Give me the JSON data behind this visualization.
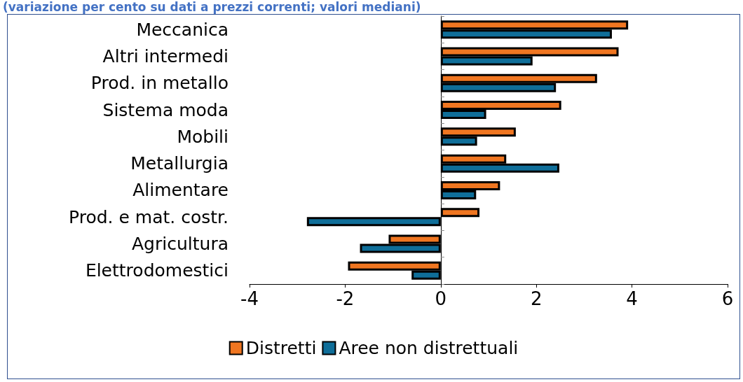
{
  "chart_data": {
    "type": "bar",
    "orientation": "horizontal",
    "title": "(variazione per cento su dati a prezzi correnti; valori mediani)",
    "categories": [
      "Meccanica",
      "Altri intermedi",
      "Prod. in metallo",
      "Sistema moda",
      "Mobili",
      "Metallurgia",
      "Alimentare",
      "Prod. e mat. costr.",
      "Agricultura",
      "Elettrodomestici"
    ],
    "series": [
      {
        "name": "Distretti",
        "color": "#f07621",
        "values": [
          3.92,
          3.72,
          3.27,
          2.52,
          1.57,
          1.37,
          1.24,
          0.81,
          -1.09,
          -1.94
        ]
      },
      {
        "name": "Aree non distrettuali",
        "color": "#0f6e99",
        "values": [
          3.58,
          1.92,
          2.41,
          0.95,
          0.76,
          2.48,
          0.74,
          -2.8,
          -1.69,
          -0.61
        ]
      }
    ],
    "xlim": [
      -4,
      6
    ],
    "xticks": [
      -4,
      -2,
      0,
      2,
      4,
      6
    ],
    "legend": "bottom"
  }
}
